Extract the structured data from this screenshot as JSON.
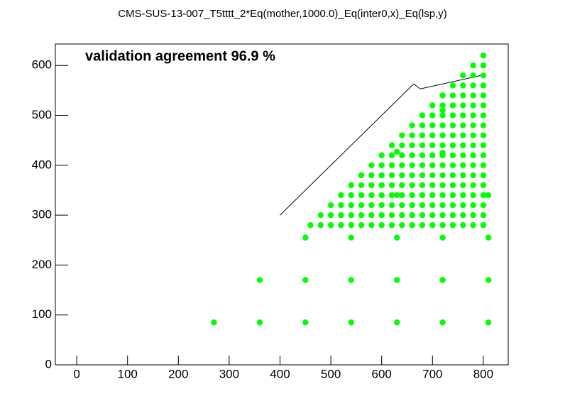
{
  "chart_data": {
    "type": "scatter",
    "title": "CMS-SUS-13-007_T5tttt_2*Eq(mother,1000.0)_Eq(inter0,x)_Eq(lsp,y)",
    "annotation": "validation agreement 96.9 %",
    "xlim": [
      -42,
      849
    ],
    "ylim": [
      0,
      643
    ],
    "xticks": [
      0,
      100,
      200,
      300,
      400,
      500,
      600,
      700,
      800
    ],
    "yticks": [
      0,
      100,
      200,
      300,
      400,
      500,
      600
    ],
    "color": "#00ff00",
    "x": [
      270,
      360,
      450,
      540,
      630,
      720,
      810,
      360,
      450,
      540,
      630,
      720,
      810,
      450,
      540,
      630,
      720,
      810,
      460,
      480,
      500,
      520,
      540,
      560,
      580,
      600,
      620,
      640,
      660,
      680,
      700,
      720,
      740,
      760,
      780,
      800,
      480,
      500,
      520,
      540,
      560,
      580,
      600,
      620,
      640,
      660,
      680,
      700,
      720,
      740,
      760,
      780,
      800,
      500,
      520,
      540,
      560,
      580,
      600,
      620,
      640,
      660,
      680,
      700,
      720,
      740,
      760,
      780,
      800,
      520,
      540,
      560,
      580,
      600,
      620,
      640,
      660,
      680,
      700,
      720,
      740,
      760,
      780,
      800,
      540,
      560,
      580,
      600,
      620,
      640,
      660,
      680,
      700,
      720,
      740,
      760,
      780,
      800,
      560,
      580,
      600,
      620,
      640,
      660,
      680,
      700,
      720,
      740,
      760,
      780,
      800,
      580,
      600,
      620,
      640,
      660,
      680,
      700,
      720,
      740,
      760,
      780,
      800,
      600,
      620,
      640,
      660,
      680,
      700,
      720,
      740,
      760,
      780,
      800,
      620,
      640,
      660,
      680,
      700,
      720,
      740,
      760,
      780,
      800,
      640,
      660,
      680,
      700,
      720,
      740,
      760,
      780,
      800,
      660,
      680,
      700,
      720,
      740,
      760,
      780,
      800,
      680,
      700,
      720,
      740,
      760,
      780,
      800,
      700,
      720,
      740,
      760,
      780,
      800,
      720,
      740,
      760,
      780,
      800,
      740,
      760,
      780,
      800,
      760,
      780,
      800,
      780,
      800,
      800,
      810,
      630,
      720,
      720,
      630
    ],
    "y": [
      85,
      85,
      85,
      85,
      85,
      85,
      85,
      170,
      170,
      170,
      170,
      170,
      170,
      255,
      255,
      255,
      255,
      255,
      280,
      280,
      280,
      280,
      280,
      280,
      280,
      280,
      280,
      280,
      280,
      280,
      280,
      280,
      280,
      280,
      280,
      280,
      300,
      300,
      300,
      300,
      300,
      300,
      300,
      300,
      300,
      300,
      300,
      300,
      300,
      300,
      300,
      300,
      300,
      320,
      320,
      320,
      320,
      320,
      320,
      320,
      320,
      320,
      320,
      320,
      320,
      320,
      320,
      320,
      320,
      340,
      340,
      340,
      340,
      340,
      340,
      340,
      340,
      340,
      340,
      340,
      340,
      340,
      340,
      340,
      360,
      360,
      360,
      360,
      360,
      360,
      360,
      360,
      360,
      360,
      360,
      360,
      360,
      360,
      380,
      380,
      380,
      380,
      380,
      380,
      380,
      380,
      380,
      380,
      380,
      380,
      380,
      400,
      400,
      400,
      400,
      400,
      400,
      400,
      400,
      400,
      400,
      400,
      400,
      420,
      420,
      420,
      420,
      420,
      420,
      420,
      420,
      420,
      420,
      420,
      440,
      440,
      440,
      440,
      440,
      440,
      440,
      440,
      440,
      440,
      460,
      460,
      460,
      460,
      460,
      460,
      460,
      460,
      460,
      480,
      480,
      480,
      480,
      480,
      480,
      480,
      480,
      500,
      500,
      500,
      500,
      500,
      500,
      500,
      520,
      520,
      520,
      520,
      520,
      520,
      540,
      540,
      540,
      540,
      540,
      560,
      560,
      560,
      560,
      580,
      580,
      580,
      600,
      600,
      620,
      340,
      427,
      425,
      510,
      340
    ],
    "line": {
      "color": "#000000",
      "x": [
        400,
        663,
        676,
        800
      ],
      "y": [
        300,
        563,
        553,
        581
      ]
    }
  }
}
